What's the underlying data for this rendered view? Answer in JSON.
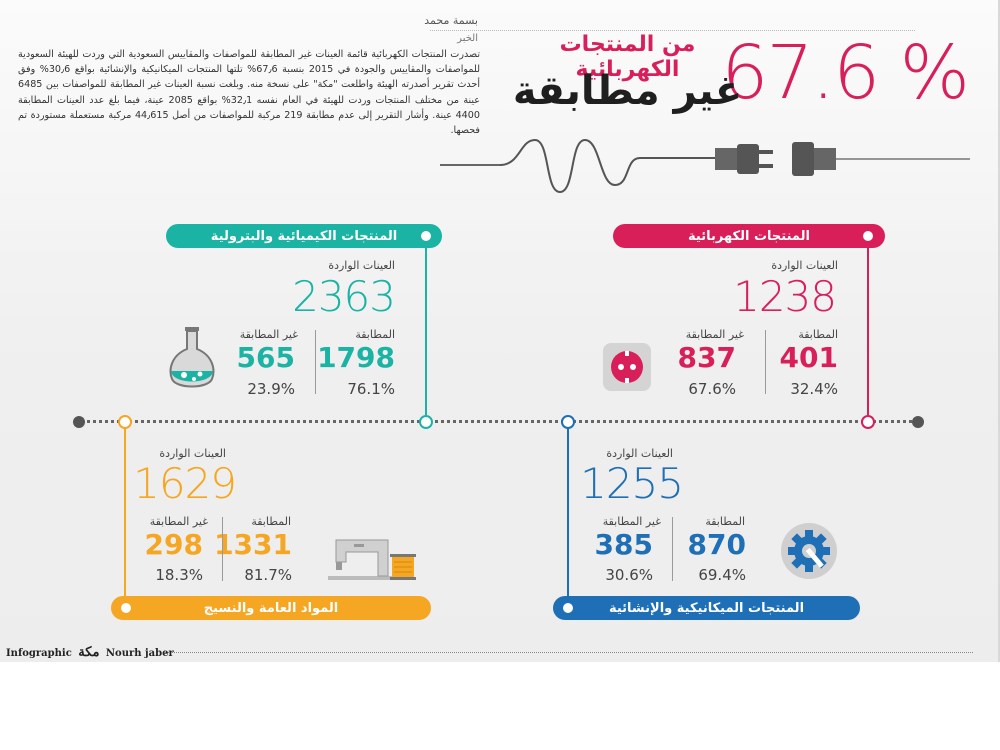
{
  "header": {
    "author": "بسمة محمد",
    "news_label": "الخبر",
    "body": "تصدرت المنتجات الكهربائية قائمة العينات غير المطابقة للمواصفات والمقاييس السعودية التي وردت للهيئة السعودية للمواصفات والمقاييس والجودة في 2015 بنسبة 67٫6% تلتها المنتجات الميكانيكية والإنشائية بواقع 30٫6% وفق أحدث تقرير أصدرته الهيئة واطلعت \"مكة\" على نسخة منه. وبلغت نسبة العينات غير المطابقة للمواصفات بين 6485 عينة من مختلف المنتجات وردت للهيئة في العام نفسه 32٫1% بواقع 2085 عينة، فيما بلغ عدد العينات المطابقة 4400 عينة. وأشار التقرير إلى عدم مطابقة 219 مركبة للمواصفات من أصل 44٫615 مركبة مستعملة مستوردة تم فحصها.",
    "big_percent": "67.6 %",
    "title_line1": "من المنتجات الكهربائية",
    "title_line2": "غير مطابقة"
  },
  "labels": {
    "received": "العينات الواردة",
    "matching": "المطابقة",
    "non_matching": "غير المطابقة"
  },
  "categories": {
    "electrical": {
      "name": "المنتجات الكهربائية",
      "total": "1238",
      "matching": "401",
      "non_matching": "837",
      "matching_pct": "32.4%",
      "non_matching_pct": "67.6%",
      "color": "#d81f5a"
    },
    "chemical": {
      "name": "المنتجات الكيميائية والبترولية",
      "total": "2363",
      "matching": "1798",
      "non_matching": "565",
      "matching_pct": "76.1%",
      "non_matching_pct": "23.9%",
      "color": "#1bb3a4"
    },
    "mechanical": {
      "name": "المنتجات الميكانيكية والإنشائية",
      "total": "1255",
      "matching": "870",
      "non_matching": "385",
      "matching_pct": "69.4%",
      "non_matching_pct": "30.6%",
      "color": "#1e6fb5"
    },
    "textiles": {
      "name": "المواد العامة والنسيج",
      "total": "1629",
      "matching": "1331",
      "non_matching": "298",
      "matching_pct": "81.7%",
      "non_matching_pct": "18.3%",
      "color": "#f5a623"
    }
  },
  "footer": {
    "left": "Infographic",
    "logo": "مكة",
    "credit": "Nourh jaber"
  }
}
